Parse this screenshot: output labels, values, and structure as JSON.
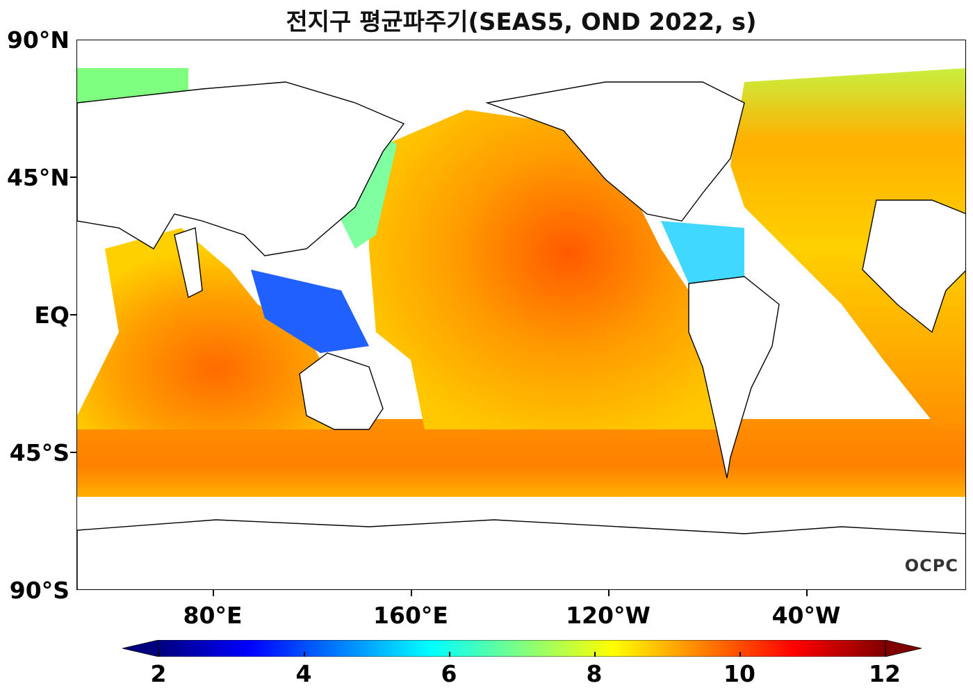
{
  "title": "전지구 평균파주기(SEAS5, OND 2022, s)",
  "watermark": "OCPC",
  "axes": {
    "lat_labels": [
      "90°N",
      "45°N",
      "EQ",
      "45°S",
      "90°S"
    ],
    "lat_values": [
      90,
      45,
      0,
      -45,
      -90
    ],
    "lon_labels": [
      "80°E",
      "160°E",
      "120°W",
      "40°W"
    ],
    "lon_values": [
      80,
      160,
      240,
      320
    ],
    "lon_range": [
      25,
      385
    ]
  },
  "colorbar": {
    "ticks": [
      "2",
      "4",
      "6",
      "8",
      "10",
      "12"
    ],
    "min": 2,
    "max": 12,
    "colors": [
      "#00007f",
      "#0000ff",
      "#007fff",
      "#00ffff",
      "#7fff7f",
      "#ffff00",
      "#ff7f00",
      "#ff0000",
      "#7f0000"
    ]
  }
}
